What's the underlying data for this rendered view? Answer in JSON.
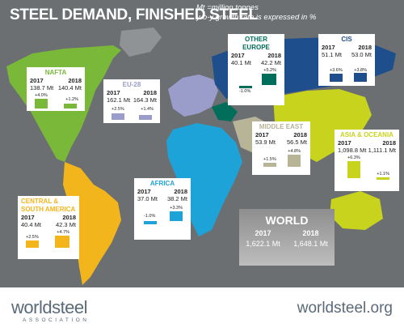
{
  "header": {
    "title": "STEEL DEMAND, FINISHED STEEL",
    "units_line1": "Mt =million tonnes",
    "units_line2": "y-o-y growth rate is expressed in %"
  },
  "colors": {
    "nafta": "#7ab83a",
    "eu28": "#9a9cc9",
    "other_europe": "#006e5a",
    "cis": "#1f4e8c",
    "middle_east": "#b7b497",
    "asia_oceania": "#c7d31c",
    "africa": "#1ea3d9",
    "csa": "#f3b51c"
  },
  "regions": {
    "nafta": {
      "name": "NAFTA",
      "y1": "2017",
      "y2": "2018",
      "v1": "138.7 Mt",
      "v2": "140.4 Mt",
      "g1": "+4.0%",
      "g2": "+1.2%",
      "g1_value": 4.0,
      "g2_value": 1.2
    },
    "eu28": {
      "name": "EU-28",
      "y1": "2017",
      "y2": "2018",
      "v1": "162.1 Mt",
      "v2": "164.3 Mt",
      "g1": "+2.5%",
      "g2": "+1.4%",
      "g1_value": 2.5,
      "g2_value": 1.4
    },
    "other_europe": {
      "name": "OTHER EUROPE",
      "y1": "2017",
      "y2": "2018",
      "v1": "40.1 Mt",
      "v2": "42.2 Mt",
      "g1": "-1.0%",
      "g2": "+5.2%",
      "g1_value": -1.0,
      "g2_value": 5.2
    },
    "cis": {
      "name": "CIS",
      "y1": "2017",
      "y2": "2018",
      "v1": "51.1 Mt",
      "v2": "53.0 Mt",
      "g1": "+3.6%",
      "g2": "+3.8%",
      "g1_value": 3.6,
      "g2_value": 3.8
    },
    "middle_east": {
      "name": "MIDDLE EAST",
      "y1": "2017",
      "y2": "2018",
      "v1": "53.9 Mt",
      "v2": "56.5 Mt",
      "g1": "+1.5%",
      "g2": "+4.8%",
      "g1_value": 1.5,
      "g2_value": 4.8
    },
    "asia_oceania": {
      "name": "ASIA & OCEANIA",
      "y1": "2017",
      "y2": "2018",
      "v1": "1,098.8 Mt",
      "v2": "1,111.1 Mt",
      "g1": "+6.3%",
      "g2": "+1.1%",
      "g1_value": 6.3,
      "g2_value": 1.1
    },
    "africa": {
      "name": "AFRICA",
      "y1": "2017",
      "y2": "2018",
      "v1": "37.0 Mt",
      "v2": "38.2 Mt",
      "g1": "-1.0%",
      "g2": "+3.3%",
      "g1_value": -1.0,
      "g2_value": 3.3
    },
    "csa": {
      "name": "CENTRAL & SOUTH AMERICA",
      "y1": "2017",
      "y2": "2018",
      "v1": "40.4 Mt",
      "v2": "42.3 Mt",
      "g1": "+2.5%",
      "g2": "+4.7%",
      "g1_value": 2.5,
      "g2_value": 4.7
    }
  },
  "world": {
    "name": "WORLD",
    "y1": "2017",
    "y2": "2018",
    "v1": "1,622.1 Mt",
    "v2": "1,648.1 Mt"
  },
  "footer": {
    "logo": "worldsteel",
    "logo_sub": "ASSOCIATION",
    "site": "worldsteel.org"
  }
}
